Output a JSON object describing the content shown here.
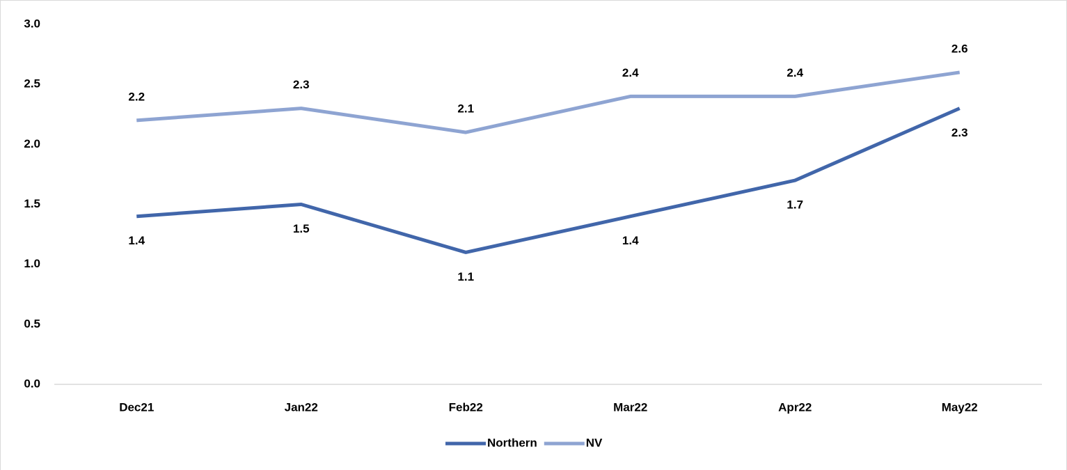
{
  "chart_data": {
    "type": "line",
    "categories": [
      "Dec21",
      "Jan22",
      "Feb22",
      "Mar22",
      "Apr22",
      "May22"
    ],
    "series": [
      {
        "name": "Northern",
        "color": "#4166aa",
        "values": [
          1.4,
          1.5,
          1.1,
          1.4,
          1.7,
          2.3
        ]
      },
      {
        "name": "NV",
        "color": "#8ea4d2",
        "values": [
          2.2,
          2.3,
          2.1,
          2.4,
          2.4,
          2.6
        ]
      }
    ],
    "ylim": [
      0,
      3
    ],
    "yticks": [
      {
        "value": 0,
        "label": "0.0"
      },
      0.5,
      {
        "value": 1,
        "label": "1.0"
      },
      1.5,
      {
        "value": 2,
        "label": "2.0"
      },
      2.5,
      {
        "value": 3,
        "label": "3.0"
      }
    ],
    "grid": false,
    "legend": "bottom"
  }
}
